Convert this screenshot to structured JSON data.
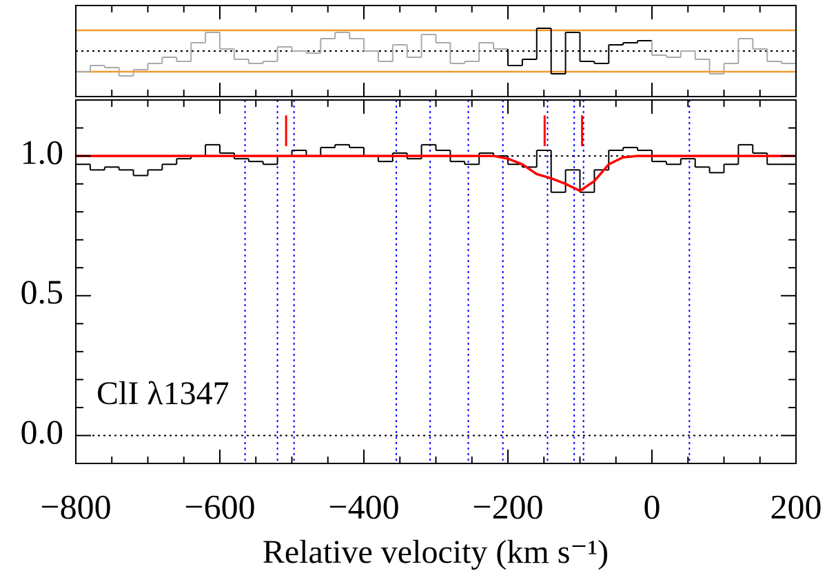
{
  "chart_data": [
    {
      "type": "step",
      "x": [
        -800,
        -780,
        -760,
        -740,
        -720,
        -700,
        -680,
        -660,
        -640,
        -620,
        -600,
        -580,
        -560,
        -540,
        -520,
        -500,
        -480,
        -460,
        -440,
        -420,
        -400,
        -380,
        -360,
        -340,
        -320,
        -300,
        -280,
        -260,
        -240,
        -220,
        -200,
        -180,
        -160,
        -140,
        -120,
        -100,
        -80,
        -60,
        -40,
        -20,
        0,
        20,
        40,
        60,
        80,
        100,
        120,
        140,
        160,
        180
      ],
      "values": [
        -1.0,
        -0.7,
        -0.8,
        -1.2,
        -0.9,
        -0.6,
        -0.3,
        -0.5,
        0.4,
        0.9,
        0.1,
        -0.4,
        -0.6,
        -0.5,
        0.2,
        0.0,
        -0.1,
        0.6,
        0.9,
        0.6,
        0.0,
        -0.5,
        0.3,
        -0.3,
        0.8,
        0.4,
        -0.6,
        -0.5,
        0.4,
        0.1,
        -0.7,
        -0.4,
        1.1,
        -1.1,
        0.9,
        -0.5,
        -0.6,
        0.3,
        0.4,
        0.5,
        -0.2,
        -0.3,
        0.0,
        -0.4,
        -1.1,
        -0.6,
        0.6,
        0.1,
        -0.5,
        -0.6
      ],
      "xlim": [
        -800,
        200
      ],
      "ylim": [
        -2.2,
        2.2
      ],
      "color": "#aaaaaa",
      "fit_color": "#000000",
      "fit_range": [
        -200,
        -20
      ],
      "sigma_levels": [
        -1,
        1
      ],
      "sigma_color": "#f29a2e",
      "reference_levels": [
        0
      ]
    },
    {
      "type": "step",
      "x": [
        -800,
        -780,
        -760,
        -740,
        -720,
        -700,
        -680,
        -660,
        -640,
        -620,
        -600,
        -580,
        -560,
        -540,
        -520,
        -500,
        -480,
        -460,
        -440,
        -420,
        -400,
        -380,
        -360,
        -340,
        -320,
        -300,
        -280,
        -260,
        -240,
        -220,
        -200,
        -180,
        -160,
        -140,
        -120,
        -100,
        -80,
        -60,
        -40,
        -20,
        0,
        20,
        40,
        60,
        80,
        100,
        120,
        140,
        160,
        180
      ],
      "values": [
        0.97,
        0.95,
        0.96,
        0.95,
        0.93,
        0.95,
        0.97,
        0.99,
        1.0,
        1.04,
        1.01,
        0.99,
        0.98,
        0.97,
        1.0,
        1.02,
        1.0,
        1.03,
        1.04,
        1.03,
        1.0,
        0.98,
        1.01,
        0.99,
        1.04,
        1.02,
        0.98,
        0.97,
        1.01,
        1.0,
        0.97,
        0.96,
        1.02,
        0.87,
        0.95,
        0.87,
        0.95,
        1.02,
        1.03,
        1.02,
        0.98,
        0.97,
        0.99,
        0.96,
        0.94,
        0.97,
        1.04,
        1.01,
        0.97,
        0.97
      ],
      "color": "#000000",
      "model": {
        "x": [
          -800,
          -220,
          -200,
          -180,
          -160,
          -140,
          -120,
          -100,
          -80,
          -60,
          -40,
          -20,
          200
        ],
        "values": [
          1.0,
          1.0,
          0.99,
          0.97,
          0.935,
          0.92,
          0.9,
          0.875,
          0.91,
          0.97,
          0.995,
          1.0,
          1.0
        ],
        "color": "#ff0000"
      },
      "xlim": [
        -800,
        200
      ],
      "ylim": [
        -0.1,
        1.2
      ],
      "xticks": [
        {
          "value": -800,
          "label": "−800"
        },
        {
          "value": -600,
          "label": "−600"
        },
        {
          "value": -400,
          "label": "−400"
        },
        {
          "value": -200,
          "label": "−200"
        },
        0,
        200
      ],
      "yticks": [
        {
          "value": 0,
          "label": "0.0"
        },
        {
          "value": 0.5,
          "label": "0.5"
        },
        {
          "value": 1,
          "label": "1.0"
        }
      ],
      "xticks_minor": [
        -750,
        -700,
        -650,
        -550,
        -500,
        -450,
        -350,
        -300,
        -250,
        -150,
        -100,
        -50,
        50,
        100,
        150
      ],
      "yticks_minor": [
        0.1,
        0.2,
        0.3,
        0.4,
        0.6,
        0.7,
        0.8,
        0.9,
        1.1
      ],
      "component_lines": [
        -565,
        -520,
        -497,
        -355,
        -308,
        -255,
        -207,
        -145,
        -108,
        -95,
        52
      ],
      "component_line_color": "#0000ff",
      "component_markers": [
        -508,
        -149,
        -97
      ],
      "marker_range": [
        1.035,
        1.145
      ],
      "marker_color": "#ff0000",
      "reference_levels": [
        0,
        1
      ],
      "label": "ClI λ1347",
      "xlabel": "Relative velocity (km s⁻¹)"
    }
  ]
}
